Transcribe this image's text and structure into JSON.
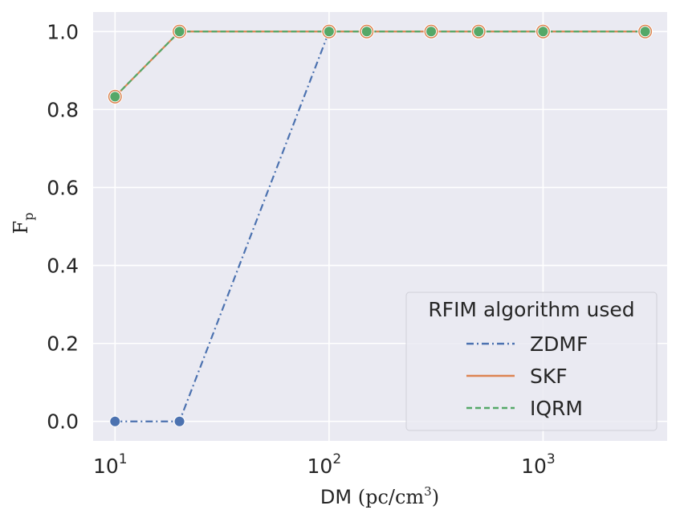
{
  "chart_data": {
    "type": "line",
    "xscale": "log",
    "xlim": [
      7.9,
      3800
    ],
    "ylim": [
      -0.05,
      1.05
    ],
    "grid": true,
    "x_ticks": [
      {
        "value": 10,
        "base": "10",
        "exp": "1"
      },
      {
        "value": 100,
        "base": "10",
        "exp": "2"
      },
      {
        "value": 1000,
        "base": "10",
        "exp": "3"
      }
    ],
    "y_ticks": [
      {
        "value": 0.0,
        "label": "0.0"
      },
      {
        "value": 0.2,
        "label": "0.2"
      },
      {
        "value": 0.4,
        "label": "0.4"
      },
      {
        "value": 0.6,
        "label": "0.6"
      },
      {
        "value": 0.8,
        "label": "0.8"
      },
      {
        "value": 1.0,
        "label": "1.0"
      }
    ],
    "xlabel": {
      "main": "DM",
      "unit_open": "(pc/cm",
      "unit_sup": "3",
      "unit_close": ")"
    },
    "ylabel": {
      "main": "F",
      "sub": "p"
    },
    "legend": {
      "title": "RFIM algorithm used",
      "position": "bottom-right"
    },
    "series": [
      {
        "name": "ZDMF",
        "color": "#4c72b0",
        "dash": "dashdot",
        "x": [
          10,
          20,
          100
        ],
        "y": [
          0.0,
          0.0,
          1.0
        ]
      },
      {
        "name": "SKF",
        "color": "#dd8452",
        "dash": "solid",
        "x": [
          10,
          20,
          100,
          150,
          300,
          500,
          1000,
          3000
        ],
        "y": [
          0.833,
          1.0,
          1.0,
          1.0,
          1.0,
          1.0,
          1.0,
          1.0
        ]
      },
      {
        "name": "IQRM",
        "color": "#55a868",
        "dash": "dashed",
        "x": [
          10,
          20,
          100,
          150,
          300,
          500,
          1000,
          3000
        ],
        "y": [
          0.833,
          1.0,
          1.0,
          1.0,
          1.0,
          1.0,
          1.0,
          1.0
        ]
      }
    ]
  }
}
